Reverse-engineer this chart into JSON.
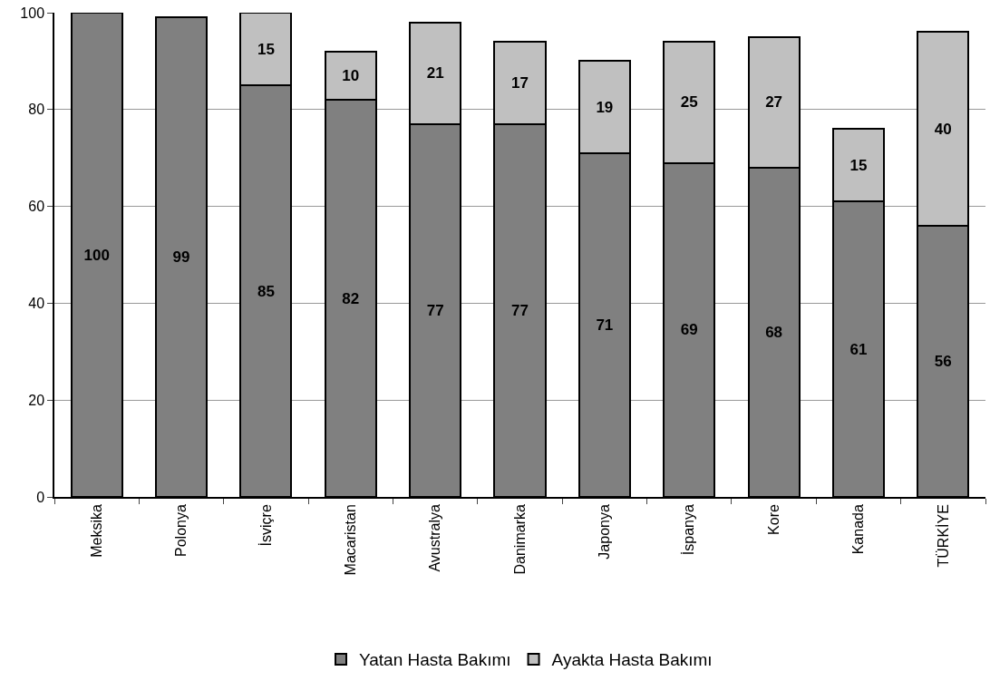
{
  "chart_data": {
    "type": "bar",
    "stacked": true,
    "categories": [
      "Meksika",
      "Polonya",
      "İsviçre",
      "Macaristan",
      "Avustralya",
      "Danimarka",
      "Japonya",
      "İspanya",
      "Kore",
      "Kanada",
      "TÜRKİYE"
    ],
    "series": [
      {
        "name": "Yatan Hasta Bakımı",
        "color": "#808080",
        "values": [
          100,
          99,
          85,
          82,
          77,
          77,
          71,
          69,
          68,
          61,
          56
        ]
      },
      {
        "name": "Ayakta Hasta Bakımı",
        "color": "#c0c0c0",
        "values": [
          null,
          null,
          15,
          10,
          21,
          17,
          19,
          25,
          27,
          15,
          40
        ]
      }
    ],
    "ylim": [
      0,
      100
    ],
    "yticks": [
      0,
      20,
      40,
      60,
      80,
      100
    ],
    "grid": "y",
    "legend": "bottom",
    "data_labels": true
  }
}
